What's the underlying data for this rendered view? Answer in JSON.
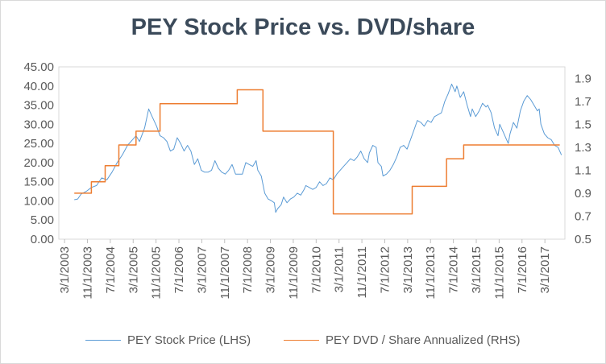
{
  "chart_data": {
    "type": "line",
    "title": "PEY Stock Price vs. DVD/share",
    "left_axis": {
      "ylim": [
        0,
        45
      ],
      "ticks": [
        "0.00",
        "5.00",
        "10.00",
        "15.00",
        "20.00",
        "25.00",
        "30.00",
        "35.00",
        "40.00",
        "45.00"
      ]
    },
    "right_axis": {
      "ylim": [
        0.5,
        2.0
      ],
      "ticks": [
        "0.5",
        "0.7",
        "0.9",
        "1.1",
        "1.3",
        "1.5",
        "1.7",
        "1.9"
      ]
    },
    "x_range": [
      2003.0,
      2017.75
    ],
    "x_ticks": [
      {
        "label": "3/1/2003",
        "x": 2003.167
      },
      {
        "label": "11/1/2003",
        "x": 2003.833
      },
      {
        "label": "7/1/2004",
        "x": 2004.5
      },
      {
        "label": "3/1/2005",
        "x": 2005.167
      },
      {
        "label": "11/1/2005",
        "x": 2005.833
      },
      {
        "label": "7/1/2006",
        "x": 2006.5
      },
      {
        "label": "3/1/2007",
        "x": 2007.167
      },
      {
        "label": "11/1/2007",
        "x": 2007.833
      },
      {
        "label": "7/1/2008",
        "x": 2008.5
      },
      {
        "label": "3/1/2009",
        "x": 2009.167
      },
      {
        "label": "11/1/2009",
        "x": 2009.833
      },
      {
        "label": "7/1/2010",
        "x": 2010.5
      },
      {
        "label": "3/1/2011",
        "x": 2011.167
      },
      {
        "label": "11/1/2011",
        "x": 2011.833
      },
      {
        "label": "7/1/2012",
        "x": 2012.5
      },
      {
        "label": "3/1/2013",
        "x": 2013.167
      },
      {
        "label": "11/1/2013",
        "x": 2013.833
      },
      {
        "label": "7/1/2014",
        "x": 2014.5
      },
      {
        "label": "3/1/2015",
        "x": 2015.167
      },
      {
        "label": "11/1/2015",
        "x": 2015.833
      },
      {
        "label": "7/1/2016",
        "x": 2016.5
      },
      {
        "label": "3/1/2017",
        "x": 2017.167
      }
    ],
    "series": [
      {
        "name": "PEY Stock Price (LHS)",
        "axis": "left",
        "color": "#5b9bd5",
        "points": [
          [
            2003.45,
            10.3
          ],
          [
            2003.55,
            10.5
          ],
          [
            2003.65,
            11.8
          ],
          [
            2003.8,
            12.5
          ],
          [
            2003.95,
            13.5
          ],
          [
            2004.1,
            14.0
          ],
          [
            2004.25,
            16.0
          ],
          [
            2004.4,
            15.5
          ],
          [
            2004.55,
            17.5
          ],
          [
            2004.7,
            20.0
          ],
          [
            2004.85,
            22.0
          ],
          [
            2005.0,
            24.5
          ],
          [
            2005.15,
            26.0
          ],
          [
            2005.25,
            27.0
          ],
          [
            2005.35,
            25.5
          ],
          [
            2005.5,
            29.0
          ],
          [
            2005.62,
            34.0
          ],
          [
            2005.72,
            32.0
          ],
          [
            2005.85,
            29.5
          ],
          [
            2005.95,
            27.0
          ],
          [
            2006.05,
            26.5
          ],
          [
            2006.15,
            25.5
          ],
          [
            2006.25,
            23.0
          ],
          [
            2006.35,
            23.5
          ],
          [
            2006.45,
            26.5
          ],
          [
            2006.55,
            25.0
          ],
          [
            2006.65,
            23.0
          ],
          [
            2006.75,
            24.5
          ],
          [
            2006.85,
            23.0
          ],
          [
            2006.95,
            19.5
          ],
          [
            2007.05,
            21.0
          ],
          [
            2007.15,
            18.0
          ],
          [
            2007.25,
            17.5
          ],
          [
            2007.35,
            17.5
          ],
          [
            2007.45,
            18.0
          ],
          [
            2007.55,
            20.5
          ],
          [
            2007.65,
            18.5
          ],
          [
            2007.75,
            17.5
          ],
          [
            2007.85,
            17.0
          ],
          [
            2007.95,
            18.0
          ],
          [
            2008.05,
            19.5
          ],
          [
            2008.15,
            17.0
          ],
          [
            2008.25,
            17.0
          ],
          [
            2008.35,
            17.0
          ],
          [
            2008.45,
            20.0
          ],
          [
            2008.55,
            19.5
          ],
          [
            2008.65,
            19.0
          ],
          [
            2008.75,
            20.5
          ],
          [
            2008.8,
            18.0
          ],
          [
            2008.9,
            16.5
          ],
          [
            2009.0,
            12.0
          ],
          [
            2009.1,
            10.5
          ],
          [
            2009.2,
            10.0
          ],
          [
            2009.28,
            9.5
          ],
          [
            2009.32,
            7.0
          ],
          [
            2009.38,
            8.0
          ],
          [
            2009.48,
            9.0
          ],
          [
            2009.55,
            11.0
          ],
          [
            2009.65,
            9.5
          ],
          [
            2009.75,
            10.5
          ],
          [
            2009.85,
            11.0
          ],
          [
            2009.95,
            12.0
          ],
          [
            2010.05,
            11.5
          ],
          [
            2010.15,
            13.0
          ],
          [
            2010.2,
            14.0
          ],
          [
            2010.3,
            13.5
          ],
          [
            2010.4,
            13.0
          ],
          [
            2010.5,
            13.5
          ],
          [
            2010.6,
            15.0
          ],
          [
            2010.7,
            14.0
          ],
          [
            2010.8,
            14.5
          ],
          [
            2010.9,
            16.0
          ],
          [
            2011.0,
            15.5
          ],
          [
            2011.1,
            17.0
          ],
          [
            2011.2,
            18.0
          ],
          [
            2011.3,
            19.0
          ],
          [
            2011.4,
            20.0
          ],
          [
            2011.5,
            21.0
          ],
          [
            2011.6,
            20.5
          ],
          [
            2011.7,
            21.5
          ],
          [
            2011.8,
            23.0
          ],
          [
            2011.9,
            21.0
          ],
          [
            2012.0,
            20.0
          ],
          [
            2012.05,
            22.5
          ],
          [
            2012.15,
            24.5
          ],
          [
            2012.25,
            24.0
          ],
          [
            2012.3,
            20.0
          ],
          [
            2012.4,
            19.0
          ],
          [
            2012.45,
            16.5
          ],
          [
            2012.55,
            17.0
          ],
          [
            2012.65,
            18.0
          ],
          [
            2012.75,
            19.5
          ],
          [
            2012.85,
            21.5
          ],
          [
            2012.95,
            24.0
          ],
          [
            2013.05,
            24.5
          ],
          [
            2013.15,
            23.5
          ],
          [
            2013.25,
            26.0
          ],
          [
            2013.35,
            28.5
          ],
          [
            2013.45,
            31.0
          ],
          [
            2013.55,
            30.5
          ],
          [
            2013.65,
            29.5
          ],
          [
            2013.75,
            31.0
          ],
          [
            2013.85,
            30.5
          ],
          [
            2013.95,
            32.0
          ],
          [
            2014.05,
            32.5
          ],
          [
            2014.15,
            33.0
          ],
          [
            2014.25,
            36.0
          ],
          [
            2014.35,
            38.0
          ],
          [
            2014.45,
            40.5
          ],
          [
            2014.55,
            38.5
          ],
          [
            2014.6,
            40.0
          ],
          [
            2014.7,
            37.0
          ],
          [
            2014.8,
            38.5
          ],
          [
            2014.9,
            35.0
          ],
          [
            2015.0,
            32.0
          ],
          [
            2015.05,
            34.0
          ],
          [
            2015.15,
            32.0
          ],
          [
            2015.25,
            33.5
          ],
          [
            2015.35,
            35.5
          ],
          [
            2015.45,
            34.5
          ],
          [
            2015.5,
            35.0
          ],
          [
            2015.6,
            33.0
          ],
          [
            2015.7,
            29.0
          ],
          [
            2015.8,
            27.0
          ],
          [
            2015.85,
            30.0
          ],
          [
            2015.95,
            28.0
          ],
          [
            2016.05,
            26.0
          ],
          [
            2016.1,
            25.0
          ],
          [
            2016.15,
            27.5
          ],
          [
            2016.25,
            30.5
          ],
          [
            2016.35,
            29.0
          ],
          [
            2016.45,
            33.5
          ],
          [
            2016.55,
            36.0
          ],
          [
            2016.65,
            37.5
          ],
          [
            2016.75,
            36.5
          ],
          [
            2016.85,
            35.0
          ],
          [
            2016.95,
            33.5
          ],
          [
            2017.0,
            34.0
          ],
          [
            2017.05,
            30.0
          ],
          [
            2017.15,
            27.5
          ],
          [
            2017.25,
            26.5
          ],
          [
            2017.35,
            26.0
          ],
          [
            2017.45,
            24.5
          ],
          [
            2017.55,
            24.0
          ],
          [
            2017.65,
            22.0
          ]
        ]
      },
      {
        "name": "PEY DVD / Share Annualized (RHS)",
        "axis": "right",
        "color": "#ed7d31",
        "points": [
          [
            2003.45,
            0.9
          ],
          [
            2003.95,
            0.9
          ],
          [
            2003.95,
            1.0
          ],
          [
            2004.35,
            1.0
          ],
          [
            2004.35,
            1.14
          ],
          [
            2004.75,
            1.14
          ],
          [
            2004.75,
            1.32
          ],
          [
            2005.25,
            1.32
          ],
          [
            2005.25,
            1.44
          ],
          [
            2005.95,
            1.44
          ],
          [
            2005.95,
            1.68
          ],
          [
            2008.2,
            1.68
          ],
          [
            2008.2,
            1.8
          ],
          [
            2008.95,
            1.8
          ],
          [
            2008.95,
            1.44
          ],
          [
            2011.0,
            1.44
          ],
          [
            2011.0,
            0.72
          ],
          [
            2013.3,
            0.72
          ],
          [
            2013.3,
            0.96
          ],
          [
            2014.3,
            0.96
          ],
          [
            2014.3,
            1.2
          ],
          [
            2014.8,
            1.2
          ],
          [
            2014.8,
            1.32
          ],
          [
            2017.6,
            1.32
          ]
        ]
      }
    ]
  }
}
